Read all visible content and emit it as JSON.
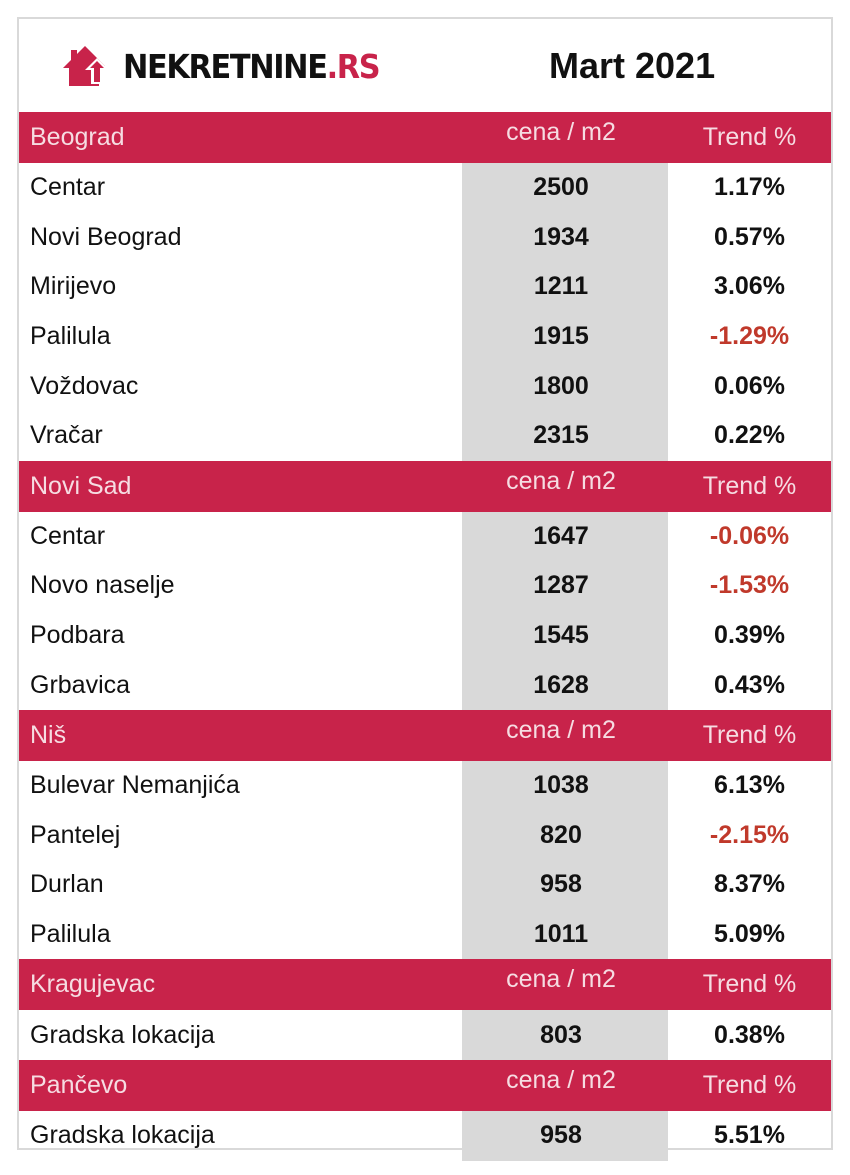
{
  "header": {
    "logo_text": "NEKRETNINE",
    "logo_suffix": ".RS",
    "title": "Mart 2021"
  },
  "colors": {
    "accent": "#c8234a",
    "negative": "#c0392b",
    "price_column_bg": "#d9d9d9"
  },
  "sections": [
    {
      "city": "Beograd",
      "price_header": "cena / m2",
      "trend_header": "Trend %",
      "rows": [
        {
          "name": "Centar",
          "price": "2500",
          "trend": "1.17%"
        },
        {
          "name": "Novi Beograd",
          "price": "1934",
          "trend": "0.57%"
        },
        {
          "name": "Mirijevo",
          "price": "1211",
          "trend": "3.06%"
        },
        {
          "name": "Palilula",
          "price": "1915",
          "trend": "-1.29%"
        },
        {
          "name": "Voždovac",
          "price": "1800",
          "trend": "0.06%"
        },
        {
          "name": "Vračar",
          "price": "2315",
          "trend": "0.22%"
        }
      ]
    },
    {
      "city": "Novi Sad",
      "price_header": "cena / m2",
      "trend_header": "Trend %",
      "rows": [
        {
          "name": "Centar",
          "price": "1647",
          "trend": "-0.06%"
        },
        {
          "name": "Novo naselje",
          "price": "1287",
          "trend": "-1.53%"
        },
        {
          "name": "Podbara",
          "price": "1545",
          "trend": "0.39%"
        },
        {
          "name": "Grbavica",
          "price": "1628",
          "trend": "0.43%"
        }
      ]
    },
    {
      "city": "Niš",
      "price_header": "cena / m2",
      "trend_header": "Trend %",
      "rows": [
        {
          "name": "Bulevar Nemanjića",
          "price": "1038",
          "trend": "6.13%"
        },
        {
          "name": "Pantelej",
          "price": "820",
          "trend": "-2.15%"
        },
        {
          "name": "Durlan",
          "price": "958",
          "trend": "8.37%"
        },
        {
          "name": "Palilula",
          "price": "1011",
          "trend": "5.09%"
        }
      ]
    },
    {
      "city": "Kragujevac",
      "price_header": "cena / m2",
      "trend_header": "Trend %",
      "rows": [
        {
          "name": "Gradska lokacija",
          "price": "803",
          "trend": "0.38%"
        }
      ]
    },
    {
      "city": "Pančevo",
      "price_header": "cena / m2",
      "trend_header": "Trend %",
      "rows": [
        {
          "name": "Gradska lokacija",
          "price": "958",
          "trend": "5.51%"
        }
      ]
    }
  ]
}
